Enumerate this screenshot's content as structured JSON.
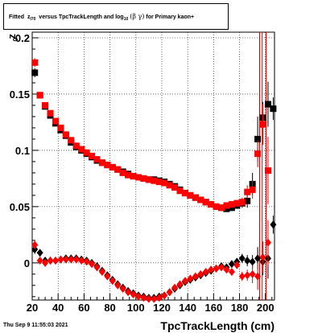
{
  "title": {
    "prefix": "Fitted",
    "var": "z",
    "var_sub": "I70",
    "middle": "versus TpcTrackLength and log",
    "log_sub": "10",
    "greek": "(β γ)",
    "suffix": "for Primary kaon+"
  },
  "footer": {
    "date": "Thu Sep  9 11:55:03 2021"
  },
  "colors": {
    "series_black": "#000000",
    "series_red": "#ff0000",
    "grid": "#000000"
  },
  "chart_data": {
    "type": "scatter",
    "xlabel": "TpcTrackLength (cm)",
    "ylabel": "z",
    "ylabel_sup": "0",
    "xlim": [
      20,
      207
    ],
    "ylim": [
      -0.033,
      0.205
    ],
    "xticks": [
      20,
      40,
      60,
      80,
      100,
      120,
      140,
      160,
      180,
      200
    ],
    "yticks": [
      0,
      0.05,
      0.1,
      0.15,
      0.2
    ],
    "ytick_labels": [
      "0",
      "0.05",
      "0.1",
      "0.15",
      "0.2"
    ],
    "grid": true,
    "vertical_lines_x": [
      195.5,
      197.5,
      200.5
    ],
    "series": [
      {
        "marker": "square",
        "color": "#000000",
        "points": [
          [
            22,
            0.169,
            0.004
          ],
          [
            26,
            0.149,
            0.002
          ],
          [
            30,
            0.139,
            0.002
          ],
          [
            34,
            0.131,
            0.002
          ],
          [
            38,
            0.124,
            0.002
          ],
          [
            42,
            0.118,
            0.002
          ],
          [
            46,
            0.113,
            0.0015
          ],
          [
            50,
            0.107,
            0.0015
          ],
          [
            54,
            0.103,
            0.0015
          ],
          [
            58,
            0.1,
            0.0015
          ],
          [
            62,
            0.097,
            0.0015
          ],
          [
            66,
            0.094,
            0.0015
          ],
          [
            70,
            0.091,
            0.0015
          ],
          [
            74,
            0.089,
            0.0015
          ],
          [
            78,
            0.087,
            0.0015
          ],
          [
            82,
            0.085,
            0.0015
          ],
          [
            86,
            0.083,
            0.0015
          ],
          [
            90,
            0.081,
            0.0015
          ],
          [
            94,
            0.079,
            0.0015
          ],
          [
            98,
            0.077,
            0.0015
          ],
          [
            102,
            0.076,
            0.0015
          ],
          [
            106,
            0.075,
            0.0015
          ],
          [
            110,
            0.074,
            0.0015
          ],
          [
            114,
            0.074,
            0.0015
          ],
          [
            118,
            0.073,
            0.0015
          ],
          [
            122,
            0.072,
            0.0015
          ],
          [
            126,
            0.07,
            0.0015
          ],
          [
            130,
            0.068,
            0.0015
          ],
          [
            134,
            0.065,
            0.0015
          ],
          [
            138,
            0.062,
            0.0015
          ],
          [
            142,
            0.06,
            0.0015
          ],
          [
            146,
            0.058,
            0.0015
          ],
          [
            150,
            0.056,
            0.0015
          ],
          [
            154,
            0.054,
            0.0015
          ],
          [
            158,
            0.052,
            0.0015
          ],
          [
            162,
            0.05,
            0.0015
          ],
          [
            166,
            0.049,
            0.002
          ],
          [
            170,
            0.048,
            0.002
          ],
          [
            174,
            0.049,
            0.003
          ],
          [
            178,
            0.051,
            0.003
          ],
          [
            182,
            0.053,
            0.004
          ],
          [
            186,
            0.055,
            0.006
          ],
          [
            190,
            0.07,
            0.01
          ],
          [
            194,
            0.11,
            0.02
          ],
          [
            198,
            0.129,
            0.014
          ],
          [
            202,
            0.141,
            0.02
          ],
          [
            206,
            0.137,
            0.01
          ]
        ]
      },
      {
        "marker": "square",
        "color": "#ff0000",
        "points": [
          [
            22,
            0.178,
            0.004
          ],
          [
            26,
            0.149,
            0.002
          ],
          [
            30,
            0.14,
            0.002
          ],
          [
            34,
            0.133,
            0.002
          ],
          [
            38,
            0.126,
            0.002
          ],
          [
            42,
            0.12,
            0.002
          ],
          [
            46,
            0.114,
            0.0015
          ],
          [
            50,
            0.109,
            0.0015
          ],
          [
            54,
            0.104,
            0.0015
          ],
          [
            58,
            0.101,
            0.0015
          ],
          [
            62,
            0.098,
            0.0015
          ],
          [
            66,
            0.095,
            0.0015
          ],
          [
            70,
            0.092,
            0.0015
          ],
          [
            74,
            0.089,
            0.0015
          ],
          [
            78,
            0.087,
            0.0015
          ],
          [
            82,
            0.085,
            0.0015
          ],
          [
            86,
            0.083,
            0.0015
          ],
          [
            90,
            0.08,
            0.0015
          ],
          [
            94,
            0.078,
            0.0015
          ],
          [
            98,
            0.077,
            0.0015
          ],
          [
            102,
            0.076,
            0.0015
          ],
          [
            106,
            0.075,
            0.0015
          ],
          [
            110,
            0.074,
            0.0015
          ],
          [
            114,
            0.073,
            0.0015
          ],
          [
            118,
            0.072,
            0.0015
          ],
          [
            122,
            0.071,
            0.0015
          ],
          [
            126,
            0.069,
            0.0015
          ],
          [
            130,
            0.067,
            0.0015
          ],
          [
            134,
            0.064,
            0.0015
          ],
          [
            138,
            0.062,
            0.0015
          ],
          [
            142,
            0.06,
            0.0015
          ],
          [
            146,
            0.058,
            0.0015
          ],
          [
            150,
            0.056,
            0.0015
          ],
          [
            154,
            0.054,
            0.0015
          ],
          [
            158,
            0.052,
            0.0015
          ],
          [
            162,
            0.05,
            0.0015
          ],
          [
            166,
            0.049,
            0.002
          ],
          [
            170,
            0.051,
            0.002
          ],
          [
            174,
            0.052,
            0.003
          ],
          [
            178,
            0.053,
            0.003
          ],
          [
            182,
            0.054,
            0.004
          ],
          [
            186,
            0.063,
            0.006
          ],
          [
            190,
            0.065,
            0.008
          ],
          [
            194,
            0.097,
            0.012
          ],
          [
            198,
            0.123,
            0.018
          ],
          [
            202,
            0.082,
            0.03
          ]
        ]
      },
      {
        "marker": "diamond",
        "color": "#000000",
        "points": [
          [
            22,
            0.012,
            0.004
          ],
          [
            26,
            0.009,
            0.002
          ],
          [
            30,
            0.002,
            0.002
          ],
          [
            34,
            0.002,
            0.0015
          ],
          [
            38,
            0.002,
            0.0015
          ],
          [
            42,
            0.003,
            0.0015
          ],
          [
            46,
            0.004,
            0.0015
          ],
          [
            50,
            0.004,
            0.0015
          ],
          [
            54,
            0.004,
            0.0015
          ],
          [
            58,
            0.003,
            0.0015
          ],
          [
            62,
            0.002,
            0.0015
          ],
          [
            66,
            0.0,
            0.0015
          ],
          [
            70,
            -0.003,
            0.0015
          ],
          [
            74,
            -0.007,
            0.0015
          ],
          [
            78,
            -0.011,
            0.0015
          ],
          [
            82,
            -0.015,
            0.0015
          ],
          [
            86,
            -0.019,
            0.0015
          ],
          [
            90,
            -0.022,
            0.0015
          ],
          [
            94,
            -0.025,
            0.0015
          ],
          [
            98,
            -0.027,
            0.0015
          ],
          [
            102,
            -0.029,
            0.0015
          ],
          [
            106,
            -0.03,
            0.0015
          ],
          [
            110,
            -0.031,
            0.0015
          ],
          [
            114,
            -0.031,
            0.0015
          ],
          [
            118,
            -0.03,
            0.0015
          ],
          [
            122,
            -0.029,
            0.0015
          ],
          [
            126,
            -0.026,
            0.0015
          ],
          [
            130,
            -0.023,
            0.0015
          ],
          [
            134,
            -0.02,
            0.0015
          ],
          [
            138,
            -0.017,
            0.0015
          ],
          [
            142,
            -0.015,
            0.0015
          ],
          [
            146,
            -0.013,
            0.0015
          ],
          [
            150,
            -0.011,
            0.0015
          ],
          [
            154,
            -0.009,
            0.0015
          ],
          [
            158,
            -0.007,
            0.0015
          ],
          [
            162,
            -0.005,
            0.0015
          ],
          [
            166,
            -0.003,
            0.002
          ],
          [
            170,
            -0.004,
            0.002
          ],
          [
            174,
            -0.001,
            0.003
          ],
          [
            178,
            0.001,
            0.003
          ],
          [
            182,
            0.004,
            0.004
          ],
          [
            186,
            0.002,
            0.005
          ],
          [
            190,
            0.001,
            0.006
          ],
          [
            194,
            0.004,
            0.01
          ],
          [
            198,
            0.001,
            0.012
          ],
          [
            202,
            0.004,
            0.018
          ],
          [
            206,
            0.034,
            0.008
          ]
        ]
      },
      {
        "marker": "diamond",
        "color": "#ff0000",
        "points": [
          [
            22,
            0.016,
            0.004
          ],
          [
            26,
            0.002,
            0.002
          ],
          [
            30,
            0.0,
            0.002
          ],
          [
            34,
            0.002,
            0.0015
          ],
          [
            38,
            0.002,
            0.0015
          ],
          [
            42,
            0.003,
            0.0015
          ],
          [
            46,
            0.003,
            0.0015
          ],
          [
            50,
            0.003,
            0.0015
          ],
          [
            54,
            0.003,
            0.0015
          ],
          [
            58,
            0.002,
            0.0015
          ],
          [
            62,
            0.001,
            0.0015
          ],
          [
            66,
            -0.001,
            0.0015
          ],
          [
            70,
            -0.004,
            0.0015
          ],
          [
            74,
            -0.008,
            0.0015
          ],
          [
            78,
            -0.012,
            0.0015
          ],
          [
            82,
            -0.016,
            0.0015
          ],
          [
            86,
            -0.02,
            0.0015
          ],
          [
            90,
            -0.023,
            0.0015
          ],
          [
            94,
            -0.026,
            0.0015
          ],
          [
            98,
            -0.028,
            0.0015
          ],
          [
            102,
            -0.03,
            0.0015
          ],
          [
            106,
            -0.031,
            0.0015
          ],
          [
            110,
            -0.032,
            0.0015
          ],
          [
            114,
            -0.032,
            0.0015
          ],
          [
            118,
            -0.031,
            0.0015
          ],
          [
            122,
            -0.029,
            0.0015
          ],
          [
            126,
            -0.026,
            0.0015
          ],
          [
            130,
            -0.022,
            0.0015
          ],
          [
            134,
            -0.019,
            0.0015
          ],
          [
            138,
            -0.016,
            0.0015
          ],
          [
            142,
            -0.014,
            0.0015
          ],
          [
            146,
            -0.012,
            0.0015
          ],
          [
            150,
            -0.01,
            0.0015
          ],
          [
            154,
            -0.008,
            0.0015
          ],
          [
            158,
            -0.006,
            0.0015
          ],
          [
            162,
            -0.005,
            0.0015
          ],
          [
            166,
            -0.004,
            0.002
          ],
          [
            170,
            -0.006,
            0.002
          ],
          [
            174,
            -0.008,
            0.003
          ],
          [
            178,
            -0.002,
            0.003
          ],
          [
            182,
            -0.012,
            0.004
          ],
          [
            186,
            -0.011,
            0.005
          ],
          [
            190,
            -0.01,
            0.008
          ],
          [
            194,
            -0.012,
            0.012
          ],
          [
            198,
            0.005,
            0.014
          ],
          [
            202,
            0.018,
            0.02
          ]
        ]
      }
    ]
  }
}
